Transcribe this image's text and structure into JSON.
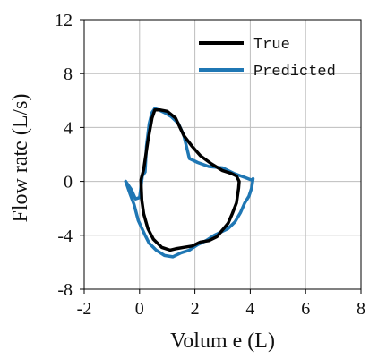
{
  "chart_data": {
    "type": "line",
    "xlabel": "Volum e (L)",
    "ylabel": "Flow rate (L/s)",
    "xlim": [
      -2,
      8
    ],
    "ylim": [
      -8,
      12
    ],
    "xticks": [
      -2,
      0,
      2,
      4,
      6,
      8
    ],
    "yticks": [
      -8,
      -4,
      0,
      4,
      8,
      12
    ],
    "xtick_labels": [
      "-2",
      "0",
      "2",
      "4",
      "6",
      "8"
    ],
    "ytick_labels": [
      "-8",
      "-4",
      "0",
      "4",
      "8",
      "12"
    ],
    "grid": true,
    "legend": "top-right",
    "series": [
      {
        "name": "True",
        "color": "#000000",
        "x": [
          0.05,
          0.15,
          0.3,
          0.45,
          0.55,
          0.75,
          1.0,
          1.3,
          1.6,
          1.9,
          2.2,
          2.6,
          3.0,
          3.3,
          3.5,
          3.6,
          3.58,
          3.5,
          3.35,
          3.2,
          3.0,
          2.8,
          2.5,
          2.2,
          1.9,
          1.6,
          1.3,
          1.1,
          0.8,
          0.5,
          0.3,
          0.15,
          0.08,
          0.05
        ],
        "y": [
          0.1,
          0.9,
          3.0,
          4.7,
          5.3,
          5.3,
          5.2,
          4.7,
          3.4,
          2.6,
          1.9,
          1.3,
          0.8,
          0.6,
          0.4,
          0.0,
          -0.5,
          -1.6,
          -2.4,
          -3.1,
          -3.6,
          -4.1,
          -4.4,
          -4.5,
          -4.8,
          -4.9,
          -5.0,
          -5.1,
          -4.9,
          -4.3,
          -3.5,
          -2.4,
          -1.4,
          0.1
        ]
      },
      {
        "name": "Predicted",
        "color": "#1f77b4",
        "x": [
          -0.5,
          -0.3,
          -0.15,
          0.0,
          0.1,
          0.2,
          0.25,
          0.35,
          0.45,
          0.55,
          0.7,
          0.9,
          1.15,
          1.4,
          1.6,
          1.8,
          2.1,
          2.5,
          3.0,
          3.4,
          3.8,
          4.05,
          4.1,
          4.05,
          3.95,
          3.8,
          3.65,
          3.45,
          3.2,
          3.0,
          2.7,
          2.4,
          2.1,
          1.8,
          1.5,
          1.2,
          0.9,
          0.6,
          0.35,
          0.2,
          -0.05,
          -0.2,
          -0.35,
          -0.5
        ],
        "y": [
          0.0,
          -0.6,
          -1.3,
          -1.2,
          0.4,
          0.7,
          2.6,
          4.3,
          5.1,
          5.4,
          5.3,
          5.1,
          4.8,
          4.3,
          3.4,
          1.7,
          1.4,
          1.1,
          1.0,
          0.6,
          0.3,
          0.1,
          0.2,
          -0.5,
          -1.1,
          -1.6,
          -2.3,
          -3.0,
          -3.5,
          -3.7,
          -4.0,
          -4.4,
          -4.7,
          -5.1,
          -5.3,
          -5.6,
          -5.5,
          -5.1,
          -4.6,
          -4.0,
          -2.9,
          -1.7,
          -0.9,
          0.0
        ]
      }
    ]
  }
}
